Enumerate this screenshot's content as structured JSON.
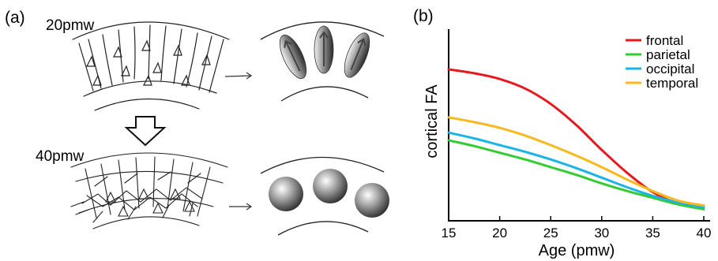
{
  "panel_a": {
    "label": "(a)",
    "stage_early": "20pmw",
    "stage_late": "40pmw"
  },
  "panel_b": {
    "label": "(b)"
  },
  "chart_data": {
    "type": "line",
    "title": "",
    "xlabel": "Age (pmw)",
    "ylabel": "cortical FA",
    "xlim": [
      15,
      40
    ],
    "ylim": [
      0,
      1
    ],
    "xticks": [
      15,
      20,
      25,
      30,
      35,
      40
    ],
    "y_tick_labels_shown": false,
    "grid": false,
    "legend_position": "top-right",
    "x": [
      15,
      17.5,
      20,
      22.5,
      25,
      27.5,
      30,
      32.5,
      35,
      37.5,
      40
    ],
    "series": [
      {
        "name": "frontal",
        "color": "#e8191e",
        "values": [
          0.79,
          0.77,
          0.74,
          0.69,
          0.61,
          0.5,
          0.37,
          0.25,
          0.15,
          0.09,
          0.08
        ]
      },
      {
        "name": "parietal",
        "color": "#33cc33",
        "values": [
          0.42,
          0.39,
          0.355,
          0.32,
          0.28,
          0.24,
          0.195,
          0.155,
          0.12,
          0.085,
          0.06
        ]
      },
      {
        "name": "occipital",
        "color": "#1ab4e6",
        "values": [
          0.46,
          0.43,
          0.395,
          0.36,
          0.32,
          0.275,
          0.225,
          0.175,
          0.13,
          0.095,
          0.07
        ]
      },
      {
        "name": "temporal",
        "color": "#f8b91e",
        "values": [
          0.54,
          0.515,
          0.485,
          0.445,
          0.395,
          0.34,
          0.28,
          0.215,
          0.155,
          0.105,
          0.08
        ]
      }
    ]
  }
}
